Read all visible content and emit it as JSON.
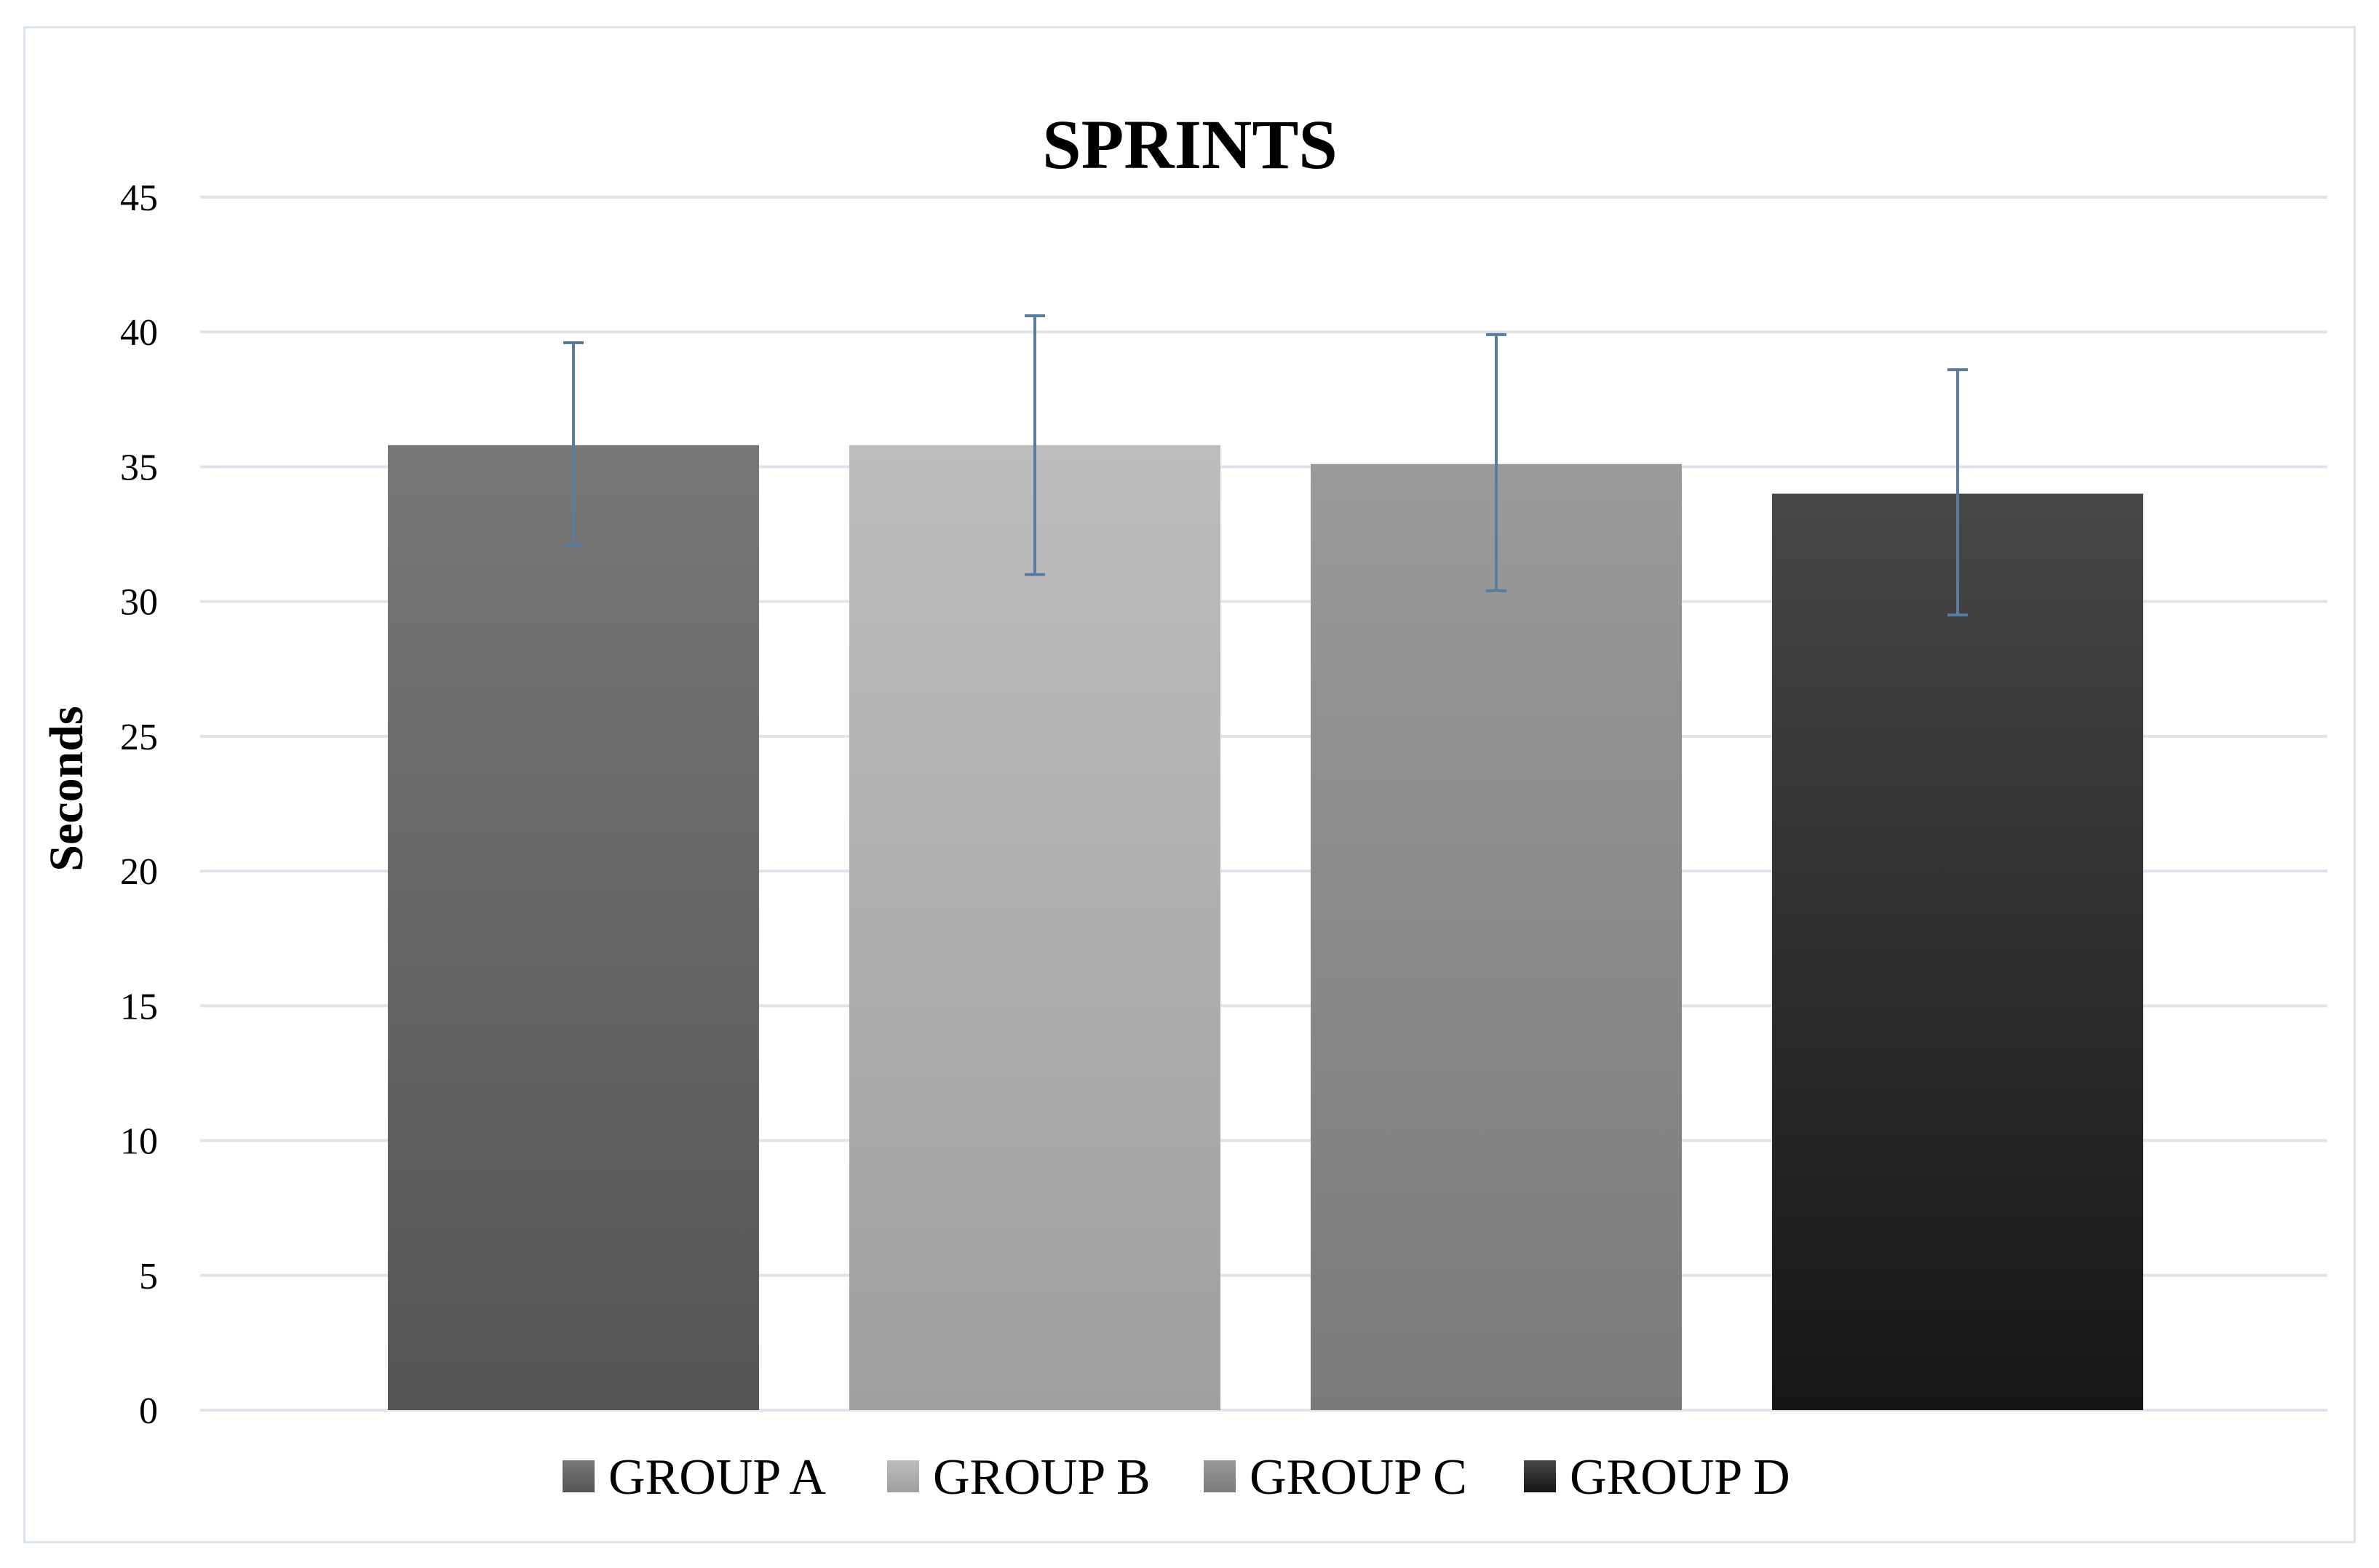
{
  "chart_data": {
    "type": "bar",
    "title": "SPRINTS",
    "xlabel": "",
    "ylabel": "Seconds",
    "ylim": [
      0,
      45
    ],
    "yticks": [
      0,
      5,
      10,
      15,
      20,
      25,
      30,
      35,
      40,
      45
    ],
    "grid": true,
    "legend_position": "bottom",
    "categories": [
      "GROUP A",
      "GROUP B",
      "GROUP C",
      "GROUP D"
    ],
    "values": [
      35.8,
      35.8,
      35.1,
      34.0
    ],
    "error_low": [
      32.1,
      31.0,
      30.4,
      29.5
    ],
    "error_high": [
      39.6,
      40.6,
      39.9,
      38.6
    ],
    "error_bar_color": "#5b7c9d",
    "gridline_color": "#dde4ec",
    "colors": [
      {
        "top": "#777777",
        "bottom": "#555555"
      },
      {
        "top": "#bdbdbd",
        "bottom": "#9f9f9f"
      },
      {
        "top": "#9a9a9a",
        "bottom": "#7a7a7a"
      },
      {
        "top": "#474747",
        "bottom": "#161616"
      }
    ]
  }
}
